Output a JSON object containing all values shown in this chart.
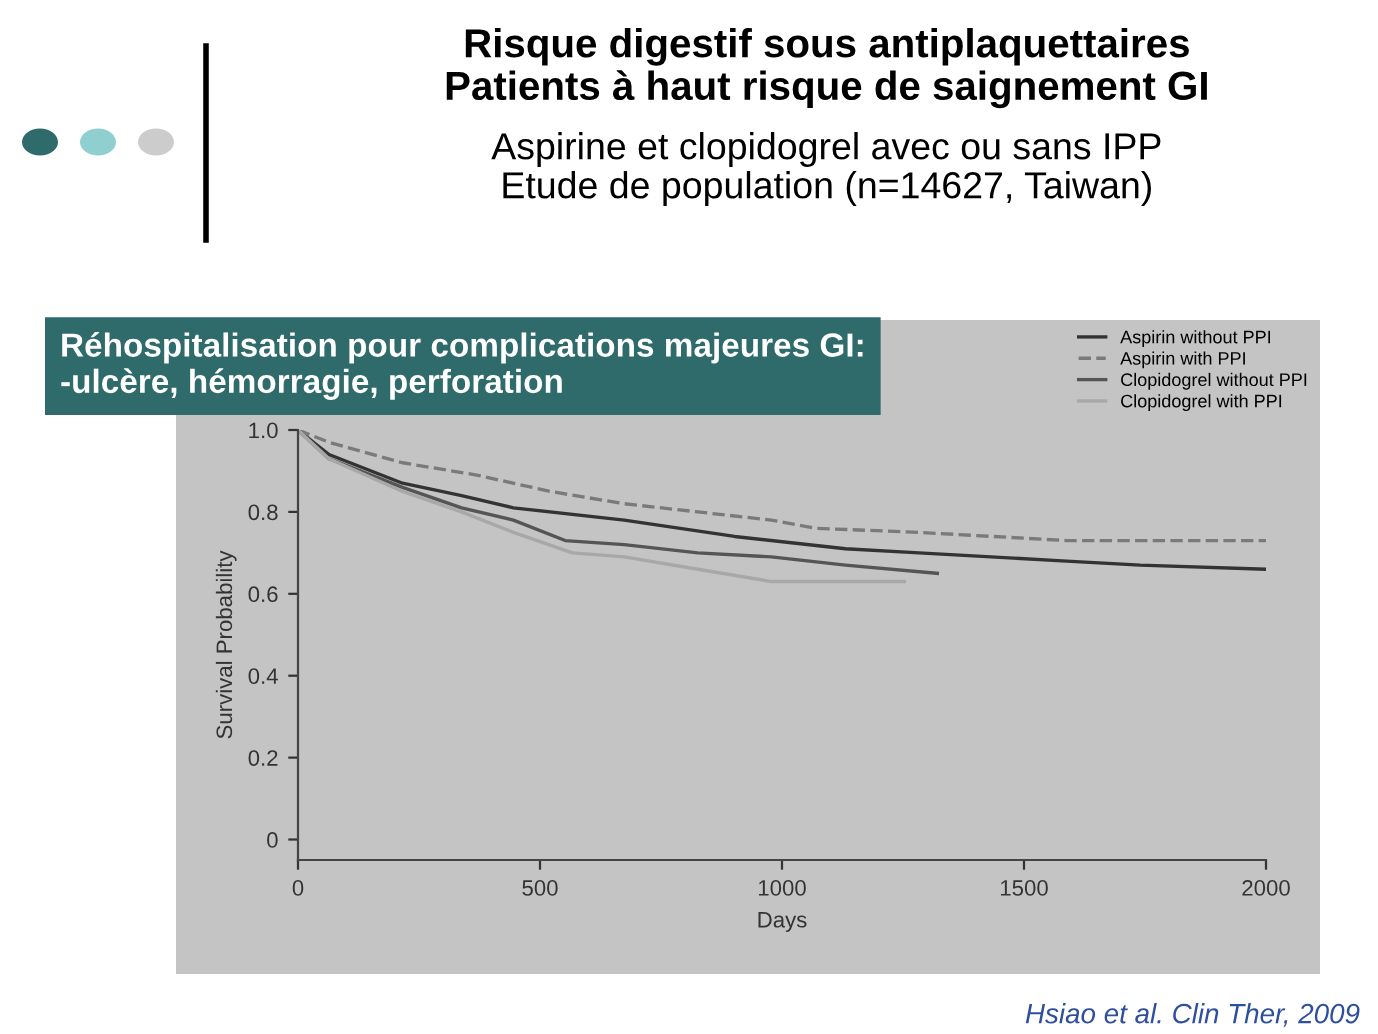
{
  "chart_data": {
    "type": "line",
    "title": "Risque digestif sous antiplaquettaires\nPatients à haut risque de saignement GI",
    "subtitle": "Aspirine et clopidogrel avec ou sans IPP\nEtude de population (n=14627, Taiwan)",
    "annotations": [
      "Réhospitalisation pour complications majeures GI:\n-ulcère, hémorragie, perforation",
      "Hsiao et al. Clin Ther, 2009"
    ],
    "xlabel": "Days",
    "ylabel": "Survival Probability",
    "xlim": [
      0,
      2000
    ],
    "xticks": [
      0,
      500,
      1000,
      1500,
      2000
    ],
    "ylim": [
      -0.05,
      1.0
    ],
    "yticks": [
      {
        "value": 0,
        "label": "0"
      },
      0.2,
      0.4,
      0.6,
      0.8,
      {
        "value": 1.0,
        "label": "1.0"
      }
    ],
    "grid": false,
    "legend": "top right",
    "series": [
      {
        "name": "Aspirin without PPI",
        "color": "#333333",
        "line_style": "solid",
        "x": [
          0,
          64,
          216,
          338,
          445,
          674,
          902,
          1131,
          1283,
          1588,
          1740,
          2000
        ],
        "values": [
          1.0,
          0.94,
          0.87,
          0.84,
          0.81,
          0.78,
          0.74,
          0.71,
          0.7,
          0.68,
          0.67,
          0.66
        ]
      },
      {
        "name": "Aspirin with PPI",
        "color": "#7a7a7a",
        "line_style": "dashed",
        "x": [
          0,
          64,
          216,
          369,
          521,
          674,
          826,
          978,
          1070,
          1283,
          1436,
          1588,
          2000
        ],
        "values": [
          1.0,
          0.97,
          0.92,
          0.89,
          0.85,
          0.82,
          0.8,
          0.78,
          0.76,
          0.75,
          0.74,
          0.73,
          0.73
        ]
      },
      {
        "name": "Clopidogrel without PPI",
        "color": "#555555",
        "line_style": "solid",
        "x": [
          0,
          64,
          216,
          338,
          445,
          552,
          674,
          826,
          978,
          1131,
          1321
        ],
        "values": [
          1.0,
          0.93,
          0.86,
          0.81,
          0.78,
          0.73,
          0.72,
          0.7,
          0.69,
          0.67,
          0.65
        ]
      },
      {
        "name": "Clopidogrel with PPI",
        "color": "#a8a8a8",
        "line_style": "solid",
        "x": [
          0,
          64,
          216,
          338,
          445,
          567,
          674,
          826,
          978,
          1131,
          1253
        ],
        "values": [
          1.0,
          0.93,
          0.85,
          0.8,
          0.75,
          0.7,
          0.69,
          0.66,
          0.63,
          0.63,
          0.63
        ]
      }
    ]
  }
}
